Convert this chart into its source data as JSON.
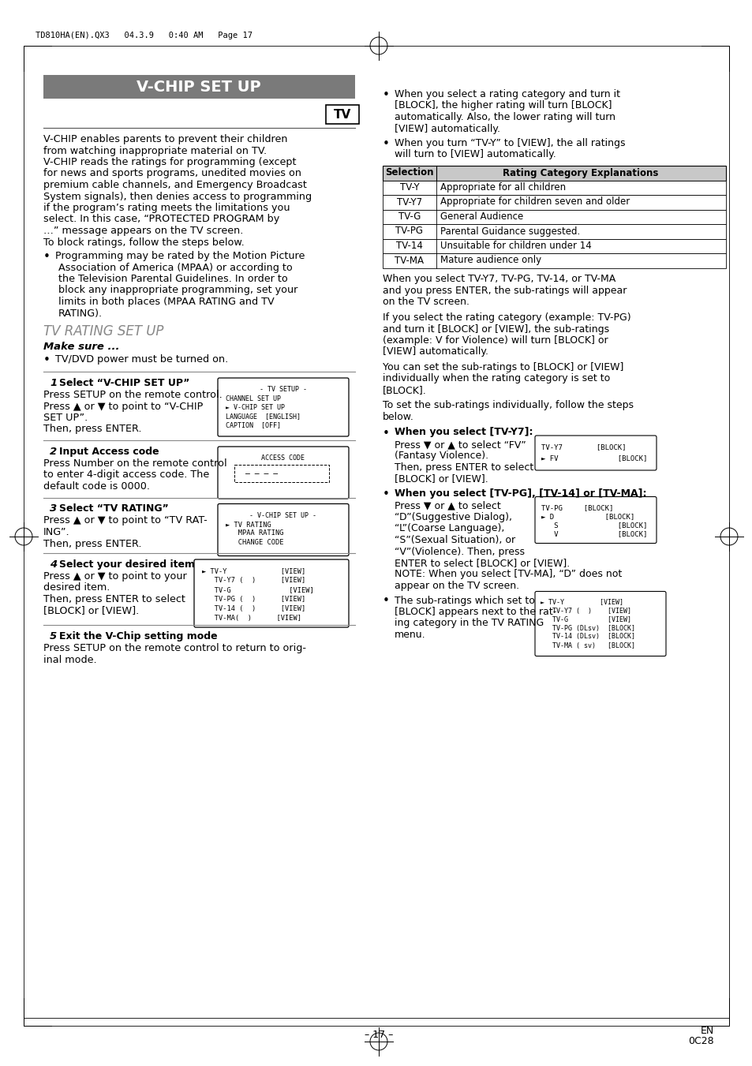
{
  "page_header": "TD810HA(EN).QX3   04.3.9   0:40 AM   Page 17",
  "main_title": "V-CHIP SET UP",
  "tv_box_label": "TV",
  "left_col_intro": [
    "V-CHIP enables parents to prevent their children",
    "from watching inappropriate material on TV.",
    "V-CHIP reads the ratings for programming (except",
    "for news and sports programs, unedited movies on",
    "premium cable channels, and Emergency Broadcast",
    "System signals), then denies access to programming",
    "if the program’s rating meets the limitations you",
    "select. In this case, “PROTECTED PROGRAM by",
    "…” message appears on the TV screen.",
    "To block ratings, follow the steps below."
  ],
  "bullet1_lines": [
    "Programming may be rated by the Motion Picture",
    "Association of America (MPAA) or according to",
    "the Television Parental Guidelines. In order to",
    "block any inappropriate programming, set your",
    "limits in both places (MPAA RATING and TV",
    "RATING)."
  ],
  "section2_title": "TV RATING SET UP",
  "make_sure": "Make sure ...",
  "make_sure_bullet": "TV/DVD power must be turned on.",
  "right_col_bullet1_lines": [
    "When you select a rating category and turn it",
    "[BLOCK], the higher rating will turn [BLOCK]",
    "automatically. Also, the lower rating will turn",
    "[VIEW] automatically."
  ],
  "right_col_bullet2_lines": [
    "When you turn “TV-Y” to [VIEW], the all ratings",
    "will turn to [VIEW] automatically."
  ],
  "table_header": [
    "Selection",
    "Rating Category Explanations"
  ],
  "table_rows": [
    [
      "TV-Y",
      "Appropriate for all children"
    ],
    [
      "TV-Y7",
      "Appropriate for children seven and older"
    ],
    [
      "TV-G",
      "General Audience"
    ],
    [
      "TV-PG",
      "Parental Guidance suggested."
    ],
    [
      "TV-14",
      "Unsuitable for children under 14"
    ],
    [
      "TV-MA",
      "Mature audience only"
    ]
  ],
  "right_col_para1_lines": [
    "When you select TV-Y7, TV-PG, TV-14, or TV-MA",
    "and you press ENTER, the sub-ratings will appear",
    "on the TV screen."
  ],
  "right_col_para2_lines": [
    "If you select the rating category (example: TV-PG)",
    "and turn it [BLOCK] or [VIEW], the sub-ratings",
    "(example: V for Violence) will turn [BLOCK] or",
    "[VIEW] automatically."
  ],
  "right_col_para3_lines": [
    "You can set the sub-ratings to [BLOCK] or [VIEW]",
    "individually when the rating category is set to",
    "[BLOCK]."
  ],
  "right_col_para4_lines": [
    "To set the sub-ratings individually, follow the steps",
    "below."
  ],
  "when_tvy7_title": "When you select [TV-Y7]:",
  "when_tvy7_lines": [
    "Press ▼ or ▲ to select “FV”",
    "(Fantasy Violence).",
    "Then, press ENTER to select",
    "[BLOCK] or [VIEW]."
  ],
  "when_tvy7_box": [
    "TV-Y7        [BLOCK]",
    "► FV              [BLOCK]"
  ],
  "when_tvpg_title": "When you select [TV-PG], [TV-14] or [TV-MA]:",
  "when_tvpg_lines1": [
    "Press ▼ or ▲ to select",
    "“D”(Suggestive Dialog),",
    "“L”(Coarse Language),",
    "“S”(Sexual Situation), or",
    "“V”(Violence). Then, press",
    "ENTER to select [BLOCK] or [VIEW]."
  ],
  "when_tvpg_note": "NOTE: When you select [TV-MA], “D” does not",
  "when_tvpg_note2": "appear on the TV screen.",
  "when_tvpg_box": [
    "TV-PG     [BLOCK]",
    "► D            [BLOCK]",
    "   S              [BLOCK]",
    "   V              [BLOCK]"
  ],
  "sub_ratings_lines": [
    "The sub-ratings which set to",
    "[BLOCK] appears next to the rat-",
    "ing category in the TV RATING",
    "menu."
  ],
  "sub_ratings_box": [
    "► TV-Y         [VIEW]",
    "   TV-Y7 (  )    [VIEW]",
    "   TV-G          [VIEW]",
    "   TV-PG (DLsv)  [BLOCK]",
    "   TV-14 (DLsv)  [BLOCK]",
    "   TV-MA ( sv)   [BLOCK]"
  ],
  "step1_box": [
    "- TV SETUP -",
    "CHANNEL SET UP",
    "► V-CHIP SET UP",
    "LANGUAGE  [ENGLISH]",
    "CAPTION  [OFF]"
  ],
  "step2_box_title": "ACCESS CODE",
  "step3_box": [
    "- V-CHIP SET UP -",
    "► TV RATING",
    "   MPAA RATING",
    "   CHANGE CODE"
  ],
  "step4_box": [
    "► TV-Y             [VIEW]",
    "   TV-Y7 (  )      [VIEW]",
    "   TV-G              [VIEW]",
    "   TV-PG (  )      [VIEW]",
    "   TV-14 (  )      [VIEW]",
    "   TV-MA(  )      [VIEW]"
  ],
  "page_footer_left": "– 17 –",
  "bg_color": "#ffffff"
}
